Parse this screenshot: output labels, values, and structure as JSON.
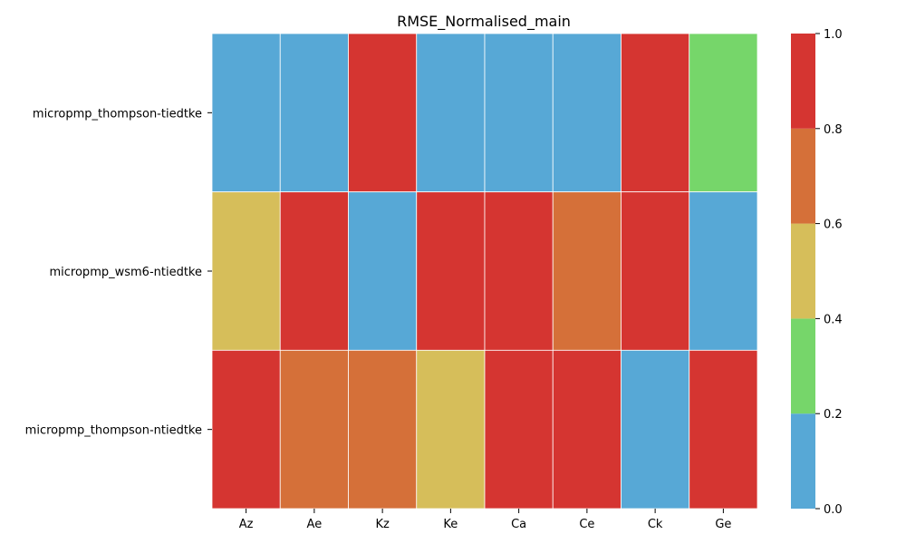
{
  "chart_data": {
    "type": "heatmap",
    "title": "RMSE_Normalised_main",
    "xlabel": "",
    "ylabel": "",
    "x_categories": [
      "Az",
      "Ae",
      "Kz",
      "Ke",
      "Ca",
      "Ce",
      "Ck",
      "Ge"
    ],
    "y_categories": [
      "micropmp_thompson-tiedtke",
      "micropmp_wsm6-ntiedtke",
      "micropmp_thompson-ntiedtke"
    ],
    "values": [
      [
        0.1,
        0.1,
        0.9,
        0.1,
        0.1,
        0.1,
        0.9,
        0.3
      ],
      [
        0.5,
        0.9,
        0.1,
        0.9,
        0.9,
        0.7,
        0.9,
        0.1
      ],
      [
        0.9,
        0.7,
        0.7,
        0.5,
        0.9,
        0.9,
        0.1,
        0.9
      ]
    ],
    "colorbar": {
      "range": [
        0.0,
        1.0
      ],
      "ticks": [
        "0.0",
        "0.2",
        "0.4",
        "0.6",
        "0.8",
        "1.0"
      ],
      "bins": [
        {
          "from": 0.0,
          "to": 0.2,
          "color": "#57a8d6"
        },
        {
          "from": 0.2,
          "to": 0.4,
          "color": "#76d66a"
        },
        {
          "from": 0.4,
          "to": 0.6,
          "color": "#d6be5a"
        },
        {
          "from": 0.6,
          "to": 0.8,
          "color": "#d57039"
        },
        {
          "from": 0.8,
          "to": 1.0,
          "color": "#d53531"
        }
      ]
    }
  }
}
